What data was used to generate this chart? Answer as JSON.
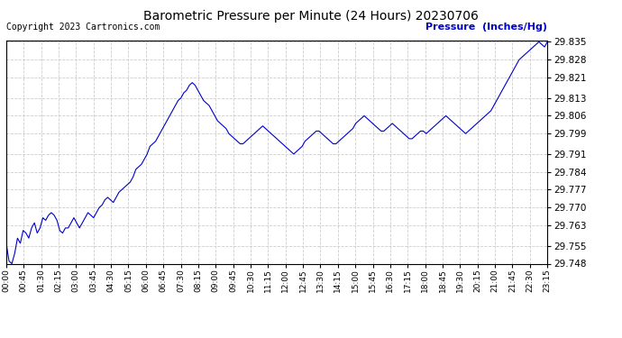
{
  "title": "Barometric Pressure per Minute (24 Hours) 20230706",
  "copyright": "Copyright 2023 Cartronics.com",
  "legend_label": "Pressure  (Inches/Hg)",
  "background_color": "#ffffff",
  "line_color": "#0000cc",
  "legend_color": "#0000cc",
  "copyright_color": "#000000",
  "grid_color": "#cccccc",
  "ylim": [
    29.748,
    29.8355
  ],
  "yticks": [
    29.748,
    29.755,
    29.763,
    29.77,
    29.777,
    29.784,
    29.791,
    29.799,
    29.806,
    29.813,
    29.821,
    29.828,
    29.835
  ],
  "xtick_labels": [
    "00:00",
    "00:45",
    "01:30",
    "02:15",
    "03:00",
    "03:45",
    "04:30",
    "05:15",
    "06:00",
    "06:45",
    "07:30",
    "08:15",
    "09:00",
    "09:45",
    "10:30",
    "11:15",
    "12:00",
    "12:45",
    "13:30",
    "14:15",
    "15:00",
    "15:45",
    "16:30",
    "17:15",
    "18:00",
    "18:45",
    "19:30",
    "20:15",
    "21:00",
    "21:45",
    "22:30",
    "23:15"
  ],
  "pressure_values": [
    29.756,
    29.749,
    29.748,
    29.752,
    29.758,
    29.756,
    29.761,
    29.76,
    29.758,
    29.762,
    29.764,
    29.76,
    29.762,
    29.766,
    29.765,
    29.767,
    29.768,
    29.767,
    29.765,
    29.761,
    29.76,
    29.762,
    29.762,
    29.764,
    29.766,
    29.764,
    29.762,
    29.764,
    29.766,
    29.768,
    29.767,
    29.766,
    29.768,
    29.77,
    29.771,
    29.773,
    29.774,
    29.773,
    29.772,
    29.774,
    29.776,
    29.777,
    29.778,
    29.779,
    29.78,
    29.782,
    29.785,
    29.786,
    29.787,
    29.789,
    29.791,
    29.794,
    29.795,
    29.796,
    29.798,
    29.8,
    29.802,
    29.804,
    29.806,
    29.808,
    29.81,
    29.812,
    29.813,
    29.815,
    29.816,
    29.818,
    29.819,
    29.818,
    29.816,
    29.814,
    29.812,
    29.811,
    29.81,
    29.808,
    29.806,
    29.804,
    29.803,
    29.802,
    29.801,
    29.799,
    29.798,
    29.797,
    29.796,
    29.795,
    29.795,
    29.796,
    29.797,
    29.798,
    29.799,
    29.8,
    29.801,
    29.802,
    29.801,
    29.8,
    29.799,
    29.798,
    29.797,
    29.796,
    29.795,
    29.794,
    29.793,
    29.792,
    29.791,
    29.792,
    29.793,
    29.794,
    29.796,
    29.797,
    29.798,
    29.799,
    29.8,
    29.8,
    29.799,
    29.798,
    29.797,
    29.796,
    29.795,
    29.795,
    29.796,
    29.797,
    29.798,
    29.799,
    29.8,
    29.801,
    29.803,
    29.804,
    29.805,
    29.806,
    29.805,
    29.804,
    29.803,
    29.802,
    29.801,
    29.8,
    29.8,
    29.801,
    29.802,
    29.803,
    29.802,
    29.801,
    29.8,
    29.799,
    29.798,
    29.797,
    29.797,
    29.798,
    29.799,
    29.8,
    29.8,
    29.799,
    29.8,
    29.801,
    29.802,
    29.803,
    29.804,
    29.805,
    29.806,
    29.805,
    29.804,
    29.803,
    29.802,
    29.801,
    29.8,
    29.799,
    29.8,
    29.801,
    29.802,
    29.803,
    29.804,
    29.805,
    29.806,
    29.807,
    29.808,
    29.81,
    29.812,
    29.814,
    29.816,
    29.818,
    29.82,
    29.822,
    29.824,
    29.826,
    29.828,
    29.829,
    29.83,
    29.831,
    29.832,
    29.833,
    29.834,
    29.835,
    29.834,
    29.833,
    29.835
  ]
}
